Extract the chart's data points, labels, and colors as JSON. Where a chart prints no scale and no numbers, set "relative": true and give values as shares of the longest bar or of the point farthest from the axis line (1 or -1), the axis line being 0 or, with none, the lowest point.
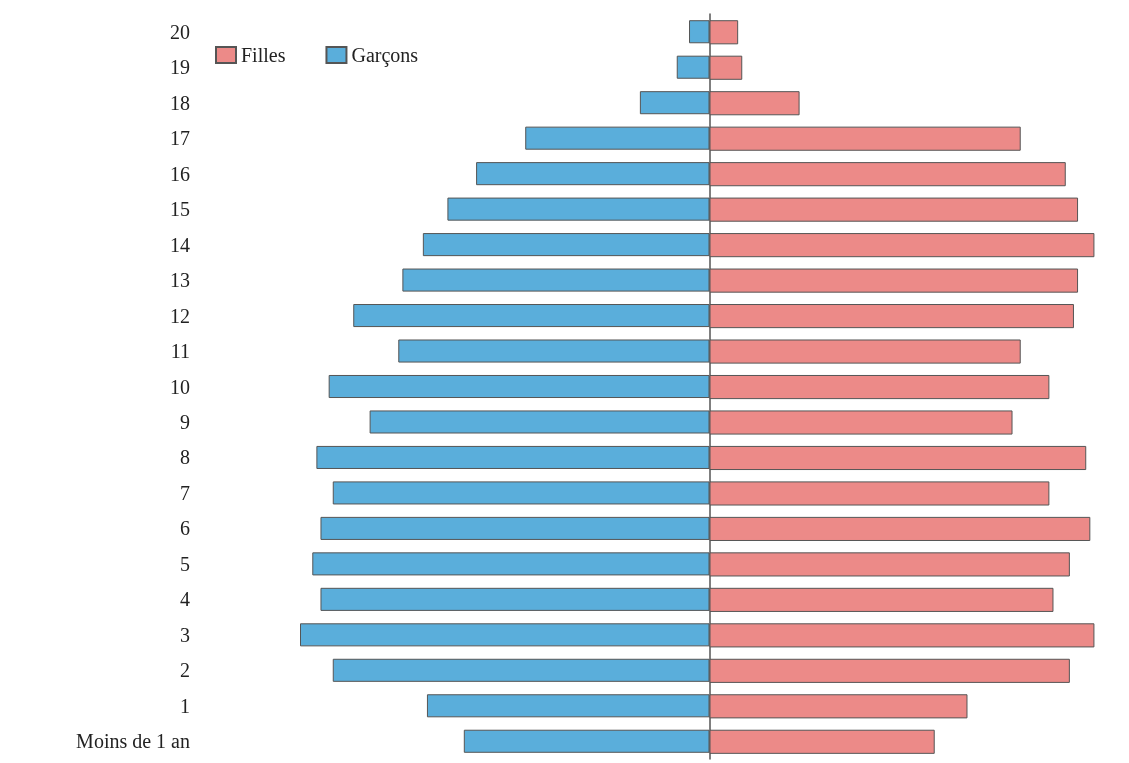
{
  "chart_data": {
    "type": "bar",
    "orientation": "horizontal",
    "relative": true,
    "legend": "top left",
    "categories": [
      "20",
      "19",
      "18",
      "17",
      "16",
      "15",
      "14",
      "13",
      "12",
      "11",
      "10",
      "9",
      "8",
      "7",
      "6",
      "5",
      "4",
      "3",
      "2",
      "1",
      "Moins de 1 an"
    ],
    "series": [
      {
        "name": "Filles",
        "color": "#ec8a88",
        "values": [
          0.07,
          0.08,
          0.22,
          0.76,
          0.87,
          0.9,
          0.94,
          0.9,
          0.89,
          0.76,
          0.83,
          0.74,
          0.92,
          0.83,
          0.93,
          0.88,
          0.84,
          0.94,
          0.88,
          0.63,
          0.55
        ]
      },
      {
        "name": "Garçons",
        "color": "#5aaedb",
        "values": [
          -0.05,
          -0.08,
          -0.17,
          -0.45,
          -0.57,
          -0.64,
          -0.7,
          -0.75,
          -0.87,
          -0.76,
          -0.93,
          -0.83,
          -0.96,
          -0.92,
          -0.95,
          -0.97,
          -0.95,
          -1,
          -0.92,
          -0.69,
          -0.6
        ]
      }
    ]
  }
}
